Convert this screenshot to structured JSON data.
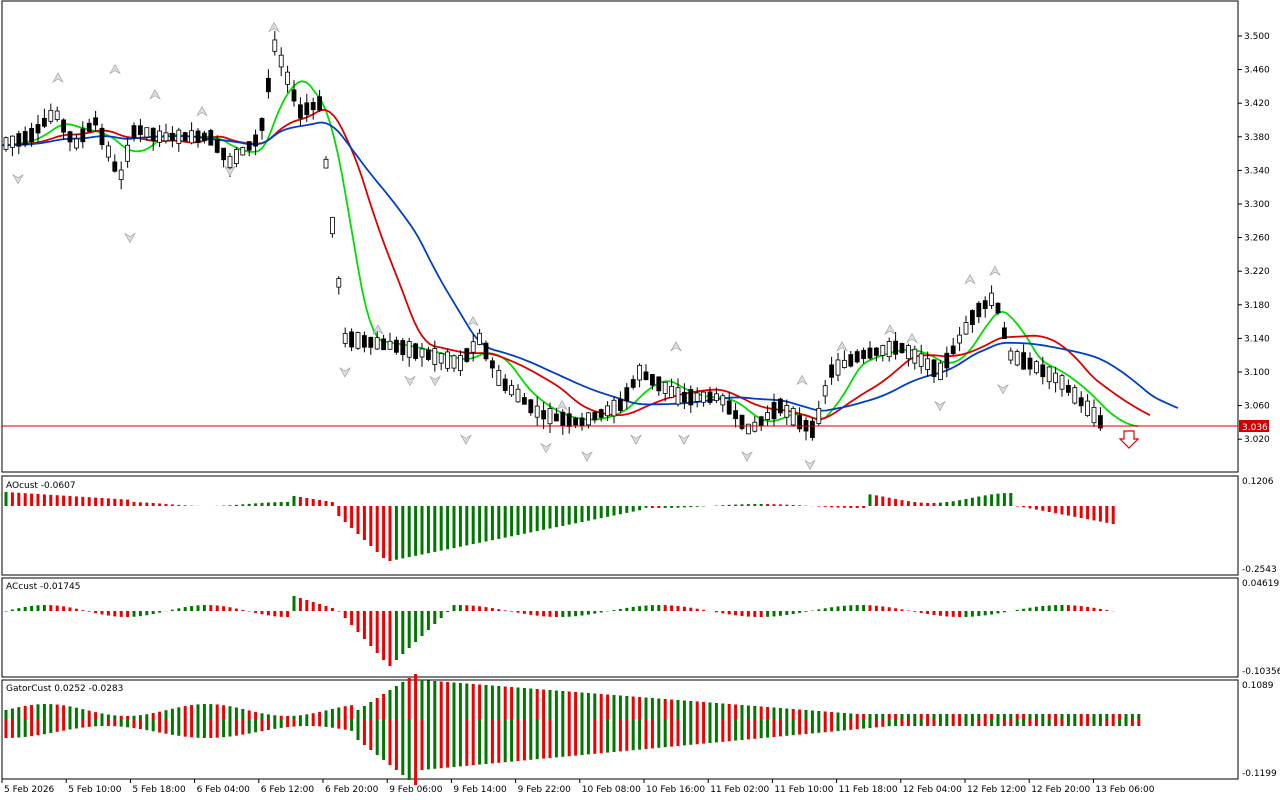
{
  "chart_data": {
    "type": "candlestick",
    "main": {
      "ylim": [
        3.0,
        3.52
      ],
      "yticks": [
        "3.500",
        "3.460",
        "3.420",
        "3.380",
        "3.340",
        "3.300",
        "3.260",
        "3.220",
        "3.180",
        "3.140",
        "3.100",
        "3.060",
        "3.020"
      ],
      "current_price": "3.036",
      "price_line_color": "#d00000",
      "candles_up_color": "#ffffff",
      "candles_down_color": "#000000",
      "ma_fast_color": "#00dd00",
      "ma_mid_color": "#dd0000",
      "ma_slow_color": "#0040c0",
      "signal_arrow": "down-arrow"
    },
    "xticks": [
      "5 Feb 2026",
      "5 Feb 10:00",
      "5 Feb 18:00",
      "6 Feb 04:00",
      "6 Feb 12:00",
      "6 Feb 20:00",
      "9 Feb 06:00",
      "9 Feb 14:00",
      "9 Feb 22:00",
      "10 Feb 08:00",
      "10 Feb 16:00",
      "11 Feb 02:00",
      "11 Feb 10:00",
      "11 Feb 18:00",
      "12 Feb 04:00",
      "12 Feb 12:00",
      "12 Feb 20:00",
      "13 Feb 06:00"
    ],
    "ao": {
      "label": "AOcust -0.0607",
      "max": "0.1206",
      "min": "-0.2543",
      "up_color": "#007700",
      "down_color": "#ee0000"
    },
    "ac": {
      "label": "ACcust -0.01745",
      "max": "0.04619",
      "min": "-0.10356"
    },
    "gator": {
      "label": "GatorCust 0.0252 -0.0283",
      "max": "0.1089",
      "min": "-0.1199"
    }
  }
}
